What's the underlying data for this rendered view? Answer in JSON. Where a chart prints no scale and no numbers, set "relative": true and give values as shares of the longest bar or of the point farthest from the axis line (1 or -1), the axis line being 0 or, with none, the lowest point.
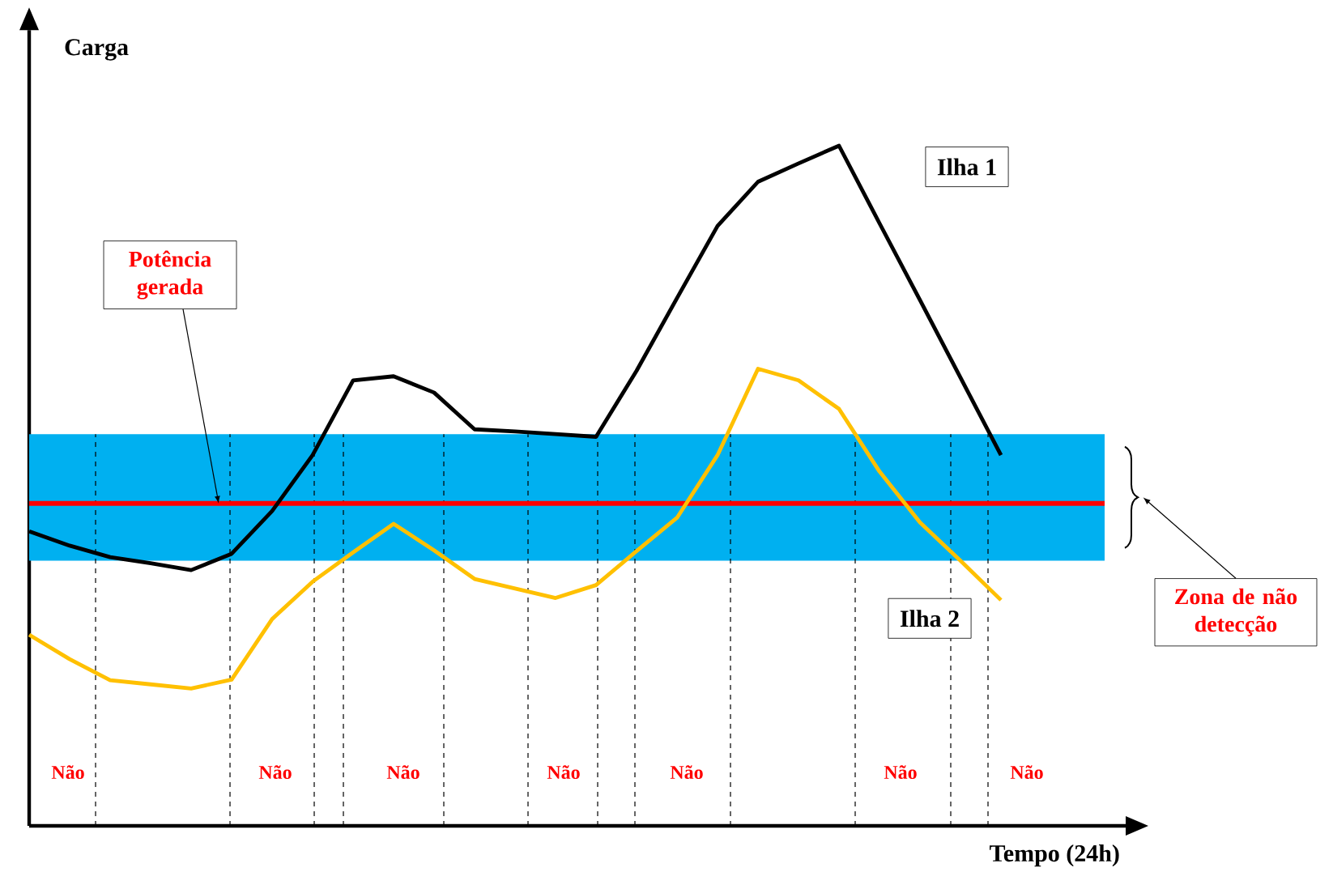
{
  "chart_data": {
    "type": "line",
    "relative": true,
    "xlabel": "Tempo (24h)",
    "ylabel": "Carga",
    "categories": [
      null,
      null,
      null,
      null,
      null,
      null,
      null,
      null,
      null,
      null,
      null,
      null,
      null,
      null,
      null,
      null,
      null,
      null,
      null,
      null,
      null,
      null,
      null,
      null,
      null
    ],
    "series": [
      {
        "name": "Ilha 1",
        "color": "#000000",
        "values": [
          0.433,
          0.412,
          0.395,
          0.386,
          0.376,
          0.4,
          0.463,
          0.545,
          0.655,
          0.661,
          0.637,
          0.583,
          0.58,
          0.576,
          0.572,
          0.669,
          0.776,
          0.882,
          0.947,
          0.974,
          1.0,
          0.886,
          0.773,
          0.659,
          0.545
        ]
      },
      {
        "name": "Ilha 2",
        "color": "#ffc000",
        "values": [
          0.281,
          0.245,
          0.214,
          0.208,
          0.202,
          0.215,
          0.304,
          0.359,
          0.402,
          0.444,
          0.405,
          0.363,
          0.349,
          0.335,
          0.354,
          0.404,
          0.453,
          0.545,
          0.672,
          0.655,
          0.613,
          0.521,
          0.446,
          0.39,
          0.332
        ]
      }
    ],
    "ref_lines": [
      {
        "axis": "y",
        "value": 0.474,
        "label": "Potência gerada",
        "color": "#ff0000"
      }
    ],
    "bands": [
      {
        "axis": "y",
        "from": 0.39,
        "to": 0.576,
        "color": "#00b0f0"
      }
    ],
    "annotations": [
      "Não",
      "Não",
      "Não",
      "Não",
      "Não",
      "Não",
      "Não",
      "Zona de não detecção"
    ]
  }
}
